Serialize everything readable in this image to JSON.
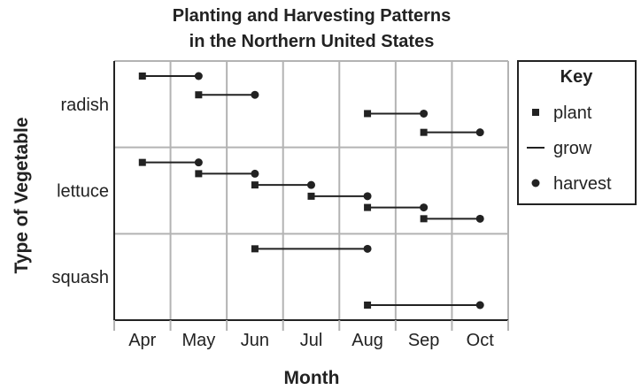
{
  "chart_data": {
    "type": "gantt",
    "title_line1": "Planting and Harvesting Patterns",
    "title_line2": "in the Northern United States",
    "xlabel": "Month",
    "ylabel": "Type of Vegetable",
    "months": [
      "Apr",
      "May",
      "Jun",
      "Jul",
      "Aug",
      "Sep",
      "Oct"
    ],
    "categories": [
      "radish",
      "lettuce",
      "squash"
    ],
    "grid": true,
    "key": {
      "title": "Key",
      "placement": "right",
      "items": [
        {
          "symbol": "square",
          "label": "plant"
        },
        {
          "symbol": "line",
          "label": "grow"
        },
        {
          "symbol": "circle",
          "label": "harvest"
        }
      ]
    },
    "series": [
      {
        "category": "radish",
        "spans": [
          {
            "plant": "Apr",
            "harvest": "May"
          },
          {
            "plant": "May",
            "harvest": "Jun"
          },
          {
            "plant": "Aug",
            "harvest": "Sep"
          },
          {
            "plant": "Sep",
            "harvest": "Oct"
          }
        ]
      },
      {
        "category": "lettuce",
        "spans": [
          {
            "plant": "Apr",
            "harvest": "May"
          },
          {
            "plant": "May",
            "harvest": "Jun"
          },
          {
            "plant": "Jun",
            "harvest": "Jul"
          },
          {
            "plant": "Jul",
            "harvest": "Aug"
          },
          {
            "plant": "Aug",
            "harvest": "Sep"
          },
          {
            "plant": "Sep",
            "harvest": "Oct"
          }
        ]
      },
      {
        "category": "squash",
        "spans": [
          {
            "plant": "Jun",
            "harvest": "Aug"
          },
          {
            "plant": "Aug",
            "harvest": "Oct"
          }
        ]
      }
    ],
    "colors": {
      "marks": "#222222",
      "grid": "#b3b3b3",
      "frame": "#222222"
    }
  }
}
